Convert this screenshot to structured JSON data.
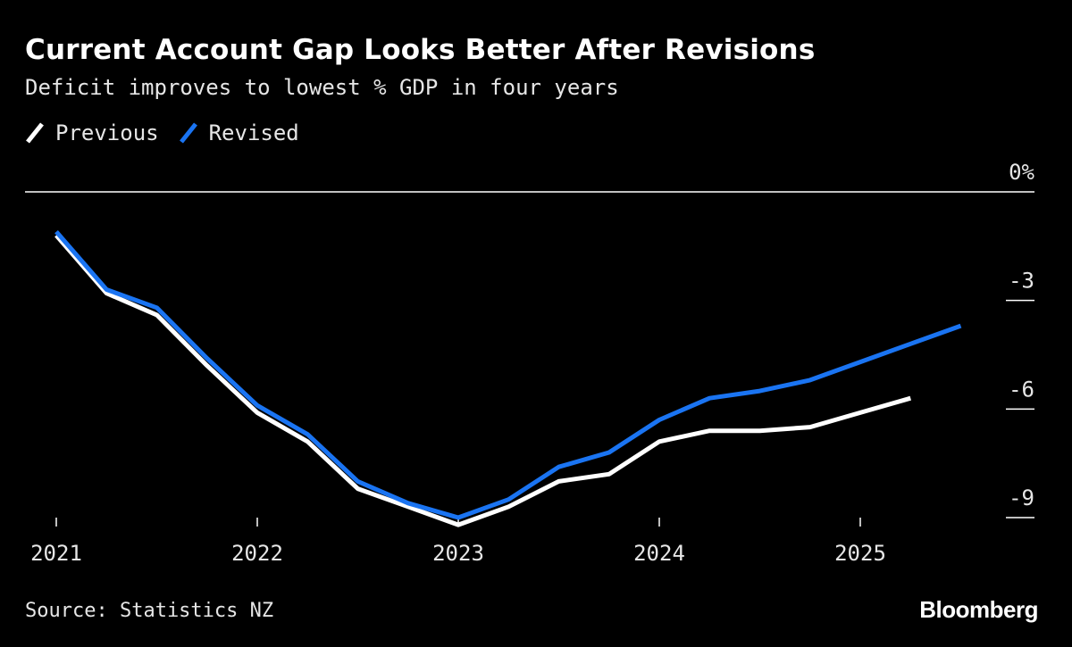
{
  "chart_data": {
    "type": "line",
    "title": "Current Account Gap Looks Better After Revisions",
    "subtitle": "Deficit improves to lowest % GDP in four years",
    "source": "Source: Statistics NZ",
    "brand": "Bloomberg",
    "x_tick_labels": [
      "2021",
      "2022",
      "2023",
      "2024",
      "2025"
    ],
    "x_tick_values": [
      2021,
      2022,
      2023,
      2024,
      2025
    ],
    "xlim": [
      2020.9,
      2025.65
    ],
    "y_tick_labels": [
      "0%",
      "-3",
      "-6",
      "-9"
    ],
    "y_tick_values": [
      0,
      -3,
      -6,
      -9
    ],
    "ylim": [
      -9.3,
      0
    ],
    "grid": false,
    "legend_position": "top-left",
    "colors": {
      "background": "#000000",
      "previous": "#ffffff",
      "revised": "#1a74f2",
      "axis": "#ffffff"
    },
    "series": [
      {
        "name": "Previous",
        "color": "#ffffff",
        "x": [
          2021.0,
          2021.25,
          2021.5,
          2021.75,
          2022.0,
          2022.25,
          2022.5,
          2022.75,
          2023.0,
          2023.25,
          2023.5,
          2023.75,
          2024.0,
          2024.25,
          2024.5,
          2024.75,
          2025.0,
          2025.25
        ],
        "values": [
          -1.2,
          -2.8,
          -3.4,
          -4.8,
          -6.1,
          -6.9,
          -8.2,
          -8.7,
          -9.2,
          -8.7,
          -8.0,
          -7.8,
          -6.9,
          -6.6,
          -6.6,
          -6.5,
          -6.1,
          -5.7
        ]
      },
      {
        "name": "Revised",
        "color": "#1a74f2",
        "x": [
          2021.0,
          2021.25,
          2021.5,
          2021.75,
          2022.0,
          2022.25,
          2022.5,
          2022.75,
          2023.0,
          2023.25,
          2023.5,
          2023.75,
          2024.0,
          2024.25,
          2024.5,
          2024.75,
          2025.0,
          2025.25,
          2025.5
        ],
        "values": [
          -1.1,
          -2.7,
          -3.2,
          -4.6,
          -5.9,
          -6.7,
          -8.0,
          -8.6,
          -9.0,
          -8.5,
          -7.6,
          -7.2,
          -6.3,
          -5.7,
          -5.5,
          -5.2,
          -4.7,
          -4.2,
          -3.7
        ]
      }
    ]
  }
}
